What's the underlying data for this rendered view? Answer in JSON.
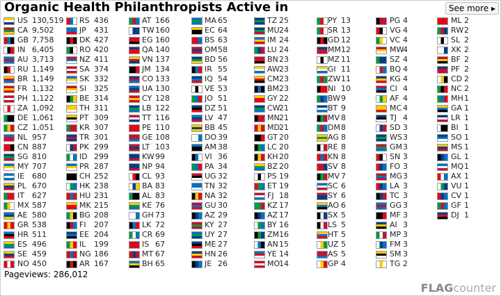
{
  "header": {
    "title": "Organic Health Philanthropists Active in",
    "see_more": "See more"
  },
  "columns": [
    [
      [
        "US",
        "130,519"
      ],
      [
        "CA",
        "9,502"
      ],
      [
        "GB",
        "7,758"
      ],
      [
        "IN",
        "6,405"
      ],
      [
        "AU",
        "3,713"
      ],
      [
        "RU",
        "1,149"
      ],
      [
        "BR",
        "1,149"
      ],
      [
        "FR",
        "1,132"
      ],
      [
        "PH",
        "1,122"
      ],
      [
        "ZA",
        "1,092"
      ],
      [
        "DE",
        "1,061"
      ],
      [
        "CZ",
        "1,051"
      ],
      [
        "NL",
        "957"
      ],
      [
        "CN",
        "887"
      ],
      [
        "SG",
        "810"
      ],
      [
        "MY",
        "707"
      ],
      [
        "IE",
        "680"
      ],
      [
        "PL",
        "670"
      ],
      [
        "IT",
        "627"
      ],
      [
        "MX",
        "587"
      ],
      [
        "AE",
        "580"
      ],
      [
        "GR",
        "538"
      ],
      [
        "HR",
        "511"
      ],
      [
        "ES",
        "496"
      ],
      [
        "SE",
        "459"
      ],
      [
        "NO",
        "450"
      ]
    ],
    [
      [
        "RS",
        "436"
      ],
      [
        "JP",
        "431"
      ],
      [
        "DK",
        "427"
      ],
      [
        "RO",
        "420"
      ],
      [
        "NZ",
        "411"
      ],
      [
        "SA",
        "374"
      ],
      [
        "SK",
        "332"
      ],
      [
        "SI",
        "325"
      ],
      [
        "BE",
        "314"
      ],
      [
        "TH",
        "311"
      ],
      [
        "PT",
        "309"
      ],
      [
        "KR",
        "307"
      ],
      [
        "TR",
        "301"
      ],
      [
        "PK",
        "299"
      ],
      [
        "ID",
        "299"
      ],
      [
        "PR",
        "287"
      ],
      [
        "CH",
        "252"
      ],
      [
        "HK",
        "238"
      ],
      [
        "HU",
        "231"
      ],
      [
        "MK",
        "215"
      ],
      [
        "BG",
        "208"
      ],
      [
        "FI",
        "207"
      ],
      [
        "EE",
        "204"
      ],
      [
        "IL",
        "199"
      ],
      [
        "NG",
        "186"
      ],
      [
        "AR",
        "167"
      ]
    ],
    [
      [
        "AT",
        "166"
      ],
      [
        "TW",
        "160"
      ],
      [
        "EG",
        "160"
      ],
      [
        "QA",
        "140"
      ],
      [
        "VN",
        "137"
      ],
      [
        "JM",
        "134"
      ],
      [
        "CO",
        "133"
      ],
      [
        "UA",
        "130"
      ],
      [
        "CY",
        "128"
      ],
      [
        "LB",
        "122"
      ],
      [
        "TT",
        "116"
      ],
      [
        "PE",
        "110"
      ],
      [
        "GE",
        "108"
      ],
      [
        "LT",
        "103"
      ],
      [
        "KW",
        "99"
      ],
      [
        "NP",
        "94"
      ],
      [
        "CL",
        "93"
      ],
      [
        "BA",
        "83"
      ],
      [
        "AL",
        "83"
      ],
      [
        "KE",
        "76"
      ],
      [
        "GH",
        "73"
      ],
      [
        "LK",
        "72"
      ],
      [
        "CR",
        "69"
      ],
      [
        "IS",
        "67"
      ],
      [
        "MT",
        "67"
      ],
      [
        "BH",
        "65"
      ]
    ],
    [
      [
        "MA",
        "65"
      ],
      [
        "EC",
        "64"
      ],
      [
        "BS",
        "63"
      ],
      [
        "OM",
        "58"
      ],
      [
        "BD",
        "56"
      ],
      [
        "IR",
        "55"
      ],
      [
        "IQ",
        "54"
      ],
      [
        "VE",
        "53"
      ],
      [
        "JO",
        "51"
      ],
      [
        "DZ",
        "51"
      ],
      [
        "LV",
        "47"
      ],
      [
        "BB",
        "45"
      ],
      [
        "DO",
        "39"
      ],
      [
        "AM",
        "38"
      ],
      [
        "VI",
        "36"
      ],
      [
        "PA",
        "34"
      ],
      [
        "UG",
        "32"
      ],
      [
        "TN",
        "32"
      ],
      [
        "NA",
        "32"
      ],
      [
        "GU",
        "30"
      ],
      [
        "AZ",
        "29"
      ],
      [
        "KY",
        "27"
      ],
      [
        "UY",
        "27"
      ],
      [
        "ME",
        "27"
      ],
      [
        "HN",
        "26"
      ],
      [
        "JE",
        "26"
      ]
    ],
    [
      [
        "TZ",
        "25"
      ],
      [
        "MU",
        "24"
      ],
      [
        "IM",
        "24"
      ],
      [
        "LU",
        "24"
      ],
      [
        "BN",
        "23"
      ],
      [
        "AW",
        "23"
      ],
      [
        "CM",
        "23"
      ],
      [
        "BM",
        "23"
      ],
      [
        "GY",
        "22"
      ],
      [
        "CW",
        "21"
      ],
      [
        "MN",
        "21"
      ],
      [
        "MD",
        "21"
      ],
      [
        "GT",
        "20"
      ],
      [
        "LC",
        "20"
      ],
      [
        "KH",
        "20"
      ],
      [
        "BZ",
        "20"
      ],
      [
        "PS",
        "19"
      ],
      [
        "ET",
        "19"
      ],
      [
        "FJ",
        "18"
      ],
      [
        "KZ",
        "17"
      ],
      [
        "AZ",
        "17"
      ],
      [
        "BY",
        "16"
      ],
      [
        "ZM",
        "16"
      ],
      [
        "AN",
        "15"
      ],
      [
        "YE",
        "14"
      ],
      [
        "MO",
        "14"
      ]
    ],
    [
      [
        "PY",
        "13"
      ],
      [
        "SR",
        "13"
      ],
      [
        "GD",
        "12"
      ],
      [
        "MM",
        "12"
      ],
      [
        "MZ",
        "11"
      ],
      [
        "GI",
        "11"
      ],
      [
        "ZW",
        "11"
      ],
      [
        "NI",
        "10"
      ],
      [
        "BW",
        "9"
      ],
      [
        "BT",
        "9"
      ],
      [
        "MV",
        "8"
      ],
      [
        "DM",
        "8"
      ],
      [
        "AG",
        "8"
      ],
      [
        "RE",
        "8"
      ],
      [
        "KN",
        "8"
      ],
      [
        "SV",
        "8"
      ],
      [
        "MV",
        "7"
      ],
      [
        "SC",
        "6"
      ],
      [
        "SY",
        "6"
      ],
      [
        "AO",
        "6"
      ],
      [
        "SX",
        "5"
      ],
      [
        "LS",
        "5"
      ],
      [
        "HT",
        "5"
      ],
      [
        "UZ",
        "5"
      ],
      [
        "AS",
        "5"
      ],
      [
        "GP",
        "4"
      ]
    ],
    [
      [
        "PG",
        "4"
      ],
      [
        "VG",
        "4"
      ],
      [
        "VC",
        "4"
      ],
      [
        "MW",
        "4"
      ],
      [
        "SZ",
        "4"
      ],
      [
        "BQ",
        "4"
      ],
      [
        "KG",
        "4"
      ],
      [
        "CI",
        "4"
      ],
      [
        "AF",
        "4"
      ],
      [
        "MC",
        "4"
      ],
      [
        "TJ",
        "4"
      ],
      [
        "SD",
        "3"
      ],
      [
        "WS",
        "3"
      ],
      [
        "GM",
        "3"
      ],
      [
        "SN",
        "3"
      ],
      [
        "FO",
        "3"
      ],
      [
        "MG",
        "3"
      ],
      [
        "LA",
        "3"
      ],
      [
        "TC",
        "3"
      ],
      [
        "GG",
        "3"
      ],
      [
        "MF",
        "3"
      ],
      [
        "AI",
        "3"
      ],
      [
        "MP",
        "3"
      ],
      [
        "FM",
        "3"
      ],
      [
        "SM",
        "3"
      ],
      [
        "TG",
        "2"
      ]
    ],
    [
      [
        "ML",
        "2"
      ],
      [
        "RW",
        "2"
      ],
      [
        "SL",
        "2"
      ],
      [
        "XK",
        "2"
      ],
      [
        "BF",
        "2"
      ],
      [
        "PF",
        "2"
      ],
      [
        "CD",
        "2"
      ],
      [
        "NC",
        "2"
      ],
      [
        "MH",
        "1"
      ],
      [
        "GA",
        "1"
      ],
      [
        "LR",
        "1"
      ],
      [
        "BI",
        "1"
      ],
      [
        "SO",
        "1"
      ],
      [
        "MS",
        "1"
      ],
      [
        "GL",
        "1"
      ],
      [
        "MQ",
        "1"
      ],
      [
        "AX",
        "1"
      ],
      [
        "VU",
        "1"
      ],
      [
        "CV",
        "1"
      ],
      [
        "GF",
        "1"
      ],
      [
        "DJ",
        "1"
      ]
    ]
  ],
  "footer": {
    "pageviews_label": "Pageviews:",
    "pageviews": "286,012",
    "logo_flag": "FLAG",
    "logo_counter": "counter"
  }
}
